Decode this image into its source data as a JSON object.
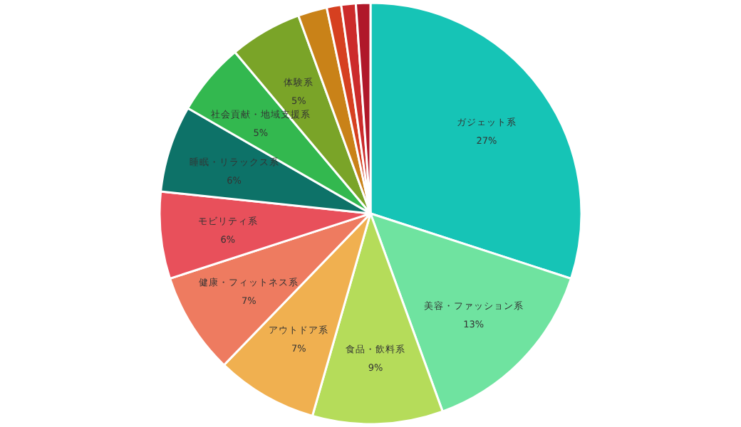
{
  "chart_data": {
    "type": "pie",
    "categories": [
      "ガジェット系",
      "美容・ファッション系",
      "食品・飲料系",
      "アウトドア系",
      "健康・フィットネス系",
      "モビリティ系",
      "睡眠・リラックス系",
      "社会貢献・地域支援系",
      "体験系",
      null,
      null,
      null,
      null
    ],
    "values": [
      27,
      13,
      9,
      7,
      7,
      6,
      6,
      5,
      5,
      2,
      1,
      1,
      1
    ],
    "value_labels": [
      "27%",
      "13%",
      "9%",
      "7%",
      "7%",
      "6%",
      "6%",
      "5%",
      "5%",
      null,
      null,
      null,
      null
    ],
    "colors": [
      "#16c4b6",
      "#6fe3a0",
      "#b5dc5a",
      "#f0b050",
      "#ee7b60",
      "#e8505b",
      "#0d7268",
      "#33b84f",
      "#7aa428",
      "#c98218",
      "#d64020",
      "#cc2b2b",
      "#b0182a"
    ]
  }
}
